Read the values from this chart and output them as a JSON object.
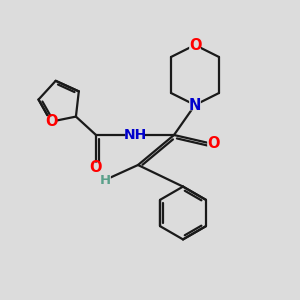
{
  "bg_color": "#dcdcdc",
  "bond_color": "#1a1a1a",
  "bond_width": 1.6,
  "atom_colors": {
    "O": "#ff0000",
    "N": "#0000cc",
    "H": "#5aa08a",
    "C": "#1a1a1a"
  },
  "font_size": 10.5
}
